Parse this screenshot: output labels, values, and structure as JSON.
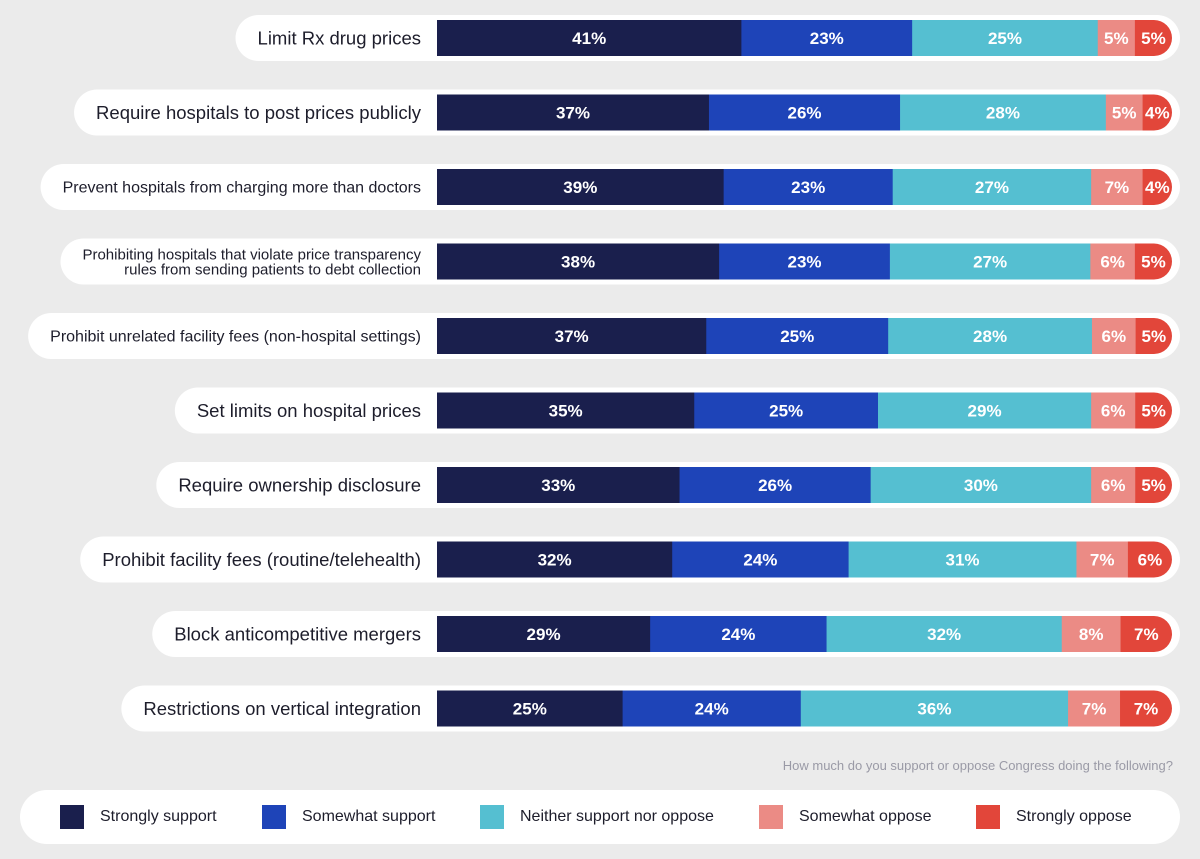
{
  "chart_data": {
    "type": "bar",
    "orientation": "horizontal",
    "stacked": true,
    "question": "How much do you support or oppose Congress doing the following?",
    "categories": [
      "Limit Rx drug prices",
      "Require hospitals to post prices publicly",
      "Prevent hospitals from charging more than doctors",
      "Prohibiting hospitals that violate price transparency rules from sending patients to debt collection",
      "Prohibit unrelated facility fees (non-hospital settings)",
      "Set limits on hospital prices",
      "Require ownership disclosure",
      "Prohibit facility fees (routine/telehealth)",
      "Block anticompetitive mergers",
      "Restrictions on vertical integration"
    ],
    "category_lines": [
      [
        "Limit Rx drug prices"
      ],
      [
        "Require hospitals to post prices publicly"
      ],
      [
        "Prevent hospitals from charging more than doctors"
      ],
      [
        "Prohibiting hospitals that violate price transparency",
        "rules from sending patients to debt collection"
      ],
      [
        "Prohibit unrelated facility fees (non-hospital settings)"
      ],
      [
        "Set limits on hospital prices"
      ],
      [
        "Require ownership disclosure"
      ],
      [
        "Prohibit facility fees (routine/telehealth)"
      ],
      [
        "Block anticompetitive mergers"
      ],
      [
        "Restrictions on vertical integration"
      ]
    ],
    "series": [
      {
        "name": "Strongly support",
        "color": "#1a1f4d",
        "values": [
          41,
          37,
          39,
          38,
          37,
          35,
          33,
          32,
          29,
          25
        ]
      },
      {
        "name": "Somewhat support",
        "color": "#1e44b8",
        "values": [
          23,
          26,
          23,
          23,
          25,
          25,
          26,
          24,
          24,
          24
        ]
      },
      {
        "name": "Neither support nor oppose",
        "color": "#55bfd1",
        "values": [
          25,
          28,
          27,
          27,
          28,
          29,
          30,
          31,
          32,
          36
        ]
      },
      {
        "name": "Somewhat oppose",
        "color": "#eb8b85",
        "values": [
          5,
          5,
          7,
          6,
          6,
          6,
          6,
          7,
          8,
          7
        ]
      },
      {
        "name": "Strongly oppose",
        "color": "#e2463a",
        "values": [
          5,
          4,
          4,
          5,
          5,
          5,
          5,
          6,
          7,
          7
        ]
      }
    ],
    "value_suffix": "%",
    "legend": "bottom"
  }
}
